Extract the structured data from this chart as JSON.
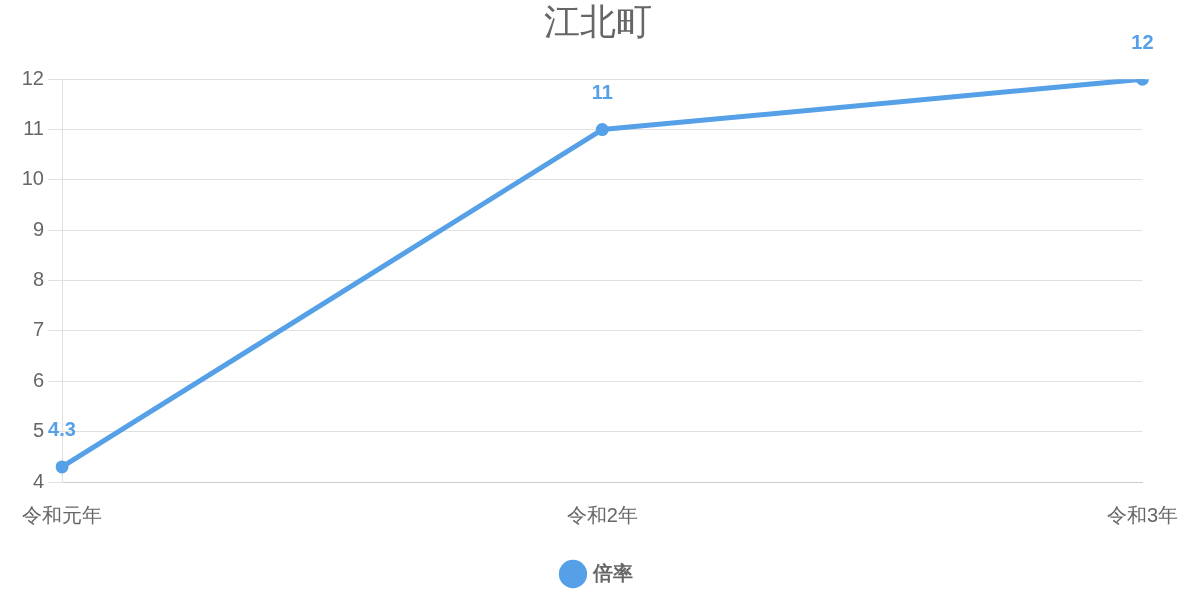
{
  "chart_data": {
    "type": "line",
    "title": "江北町",
    "categories": [
      "令和元年",
      "令和2年",
      "令和3年"
    ],
    "series": [
      {
        "name": "倍率",
        "color": "#55a0e6",
        "values": [
          4.3,
          11,
          12
        ]
      }
    ],
    "ylim": [
      4,
      12
    ],
    "yticks": [
      4,
      5,
      6,
      7,
      8,
      9,
      10,
      11,
      12
    ],
    "grid": "y",
    "legend": "bottom",
    "marker": "circle",
    "data_labels": true
  }
}
